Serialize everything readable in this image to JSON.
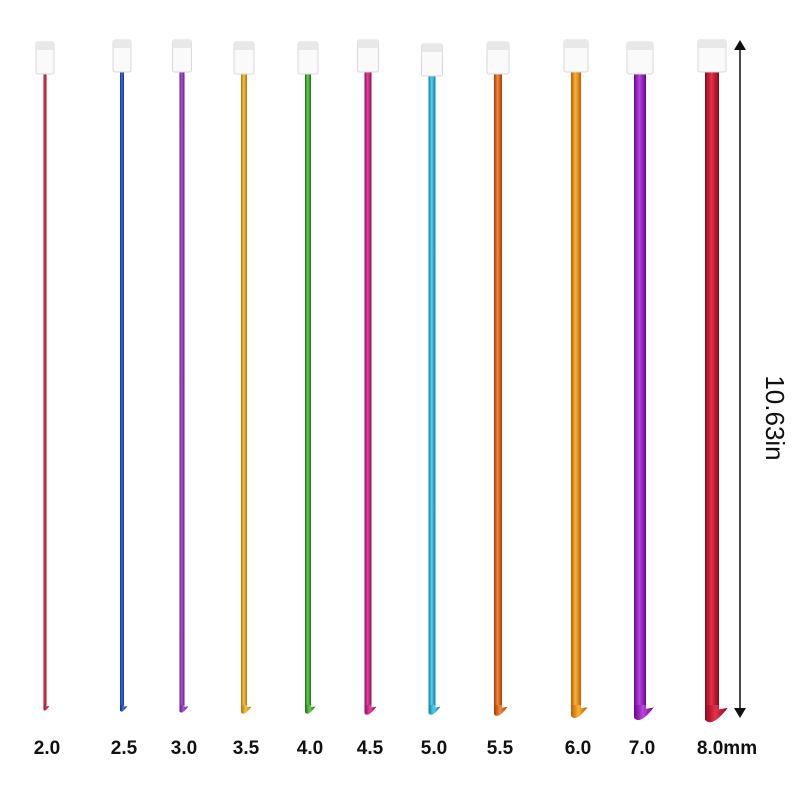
{
  "sizes": [
    "2.0",
    "2.5",
    "3.0",
    "3.5",
    "4.0",
    "4.5",
    "5.0",
    "5.5",
    "6.0",
    "7.0",
    "8.0mm"
  ],
  "length_label": "10.63in"
}
